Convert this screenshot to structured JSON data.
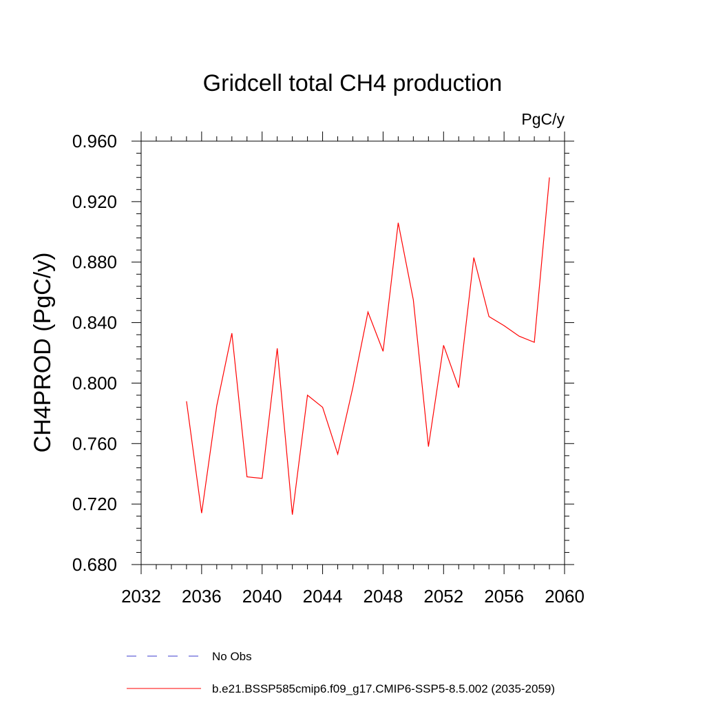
{
  "chart_data": {
    "type": "line",
    "title": "Gridcell total CH4 production",
    "units": "PgC/y",
    "xlabel": "",
    "ylabel": "CH4PROD  (PgC/y)",
    "xlim": [
      2032,
      2060
    ],
    "ylim": [
      0.68,
      0.96
    ],
    "x_ticks": [
      2032,
      2036,
      2040,
      2044,
      2048,
      2052,
      2056,
      2060
    ],
    "x_tick_labels": [
      "2032",
      "2036",
      "2040",
      "2044",
      "2048",
      "2052",
      "2056",
      "2060"
    ],
    "y_ticks": [
      0.68,
      0.72,
      0.76,
      0.8,
      0.84,
      0.88,
      0.92,
      0.96
    ],
    "y_tick_labels": [
      "0.680",
      "0.720",
      "0.760",
      "0.800",
      "0.840",
      "0.880",
      "0.920",
      "0.960"
    ],
    "grid": false,
    "legend_position": "bottom",
    "legend": [
      {
        "label": "No Obs",
        "color": "#3b3bcc",
        "style": "dashed"
      },
      {
        "label": "b.e21.BSSP585cmip6.f09_g17.CMIP6-SSP5-8.5.002 (2035-2059)",
        "color": "#ff0000",
        "style": "solid"
      }
    ],
    "series": [
      {
        "name": "b.e21.BSSP585cmip6.f09_g17.CMIP6-SSP5-8.5.002 (2035-2059)",
        "color": "#ff0000",
        "x": [
          2035,
          2036,
          2037,
          2038,
          2039,
          2040,
          2041,
          2042,
          2043,
          2044,
          2045,
          2046,
          2047,
          2048,
          2049,
          2050,
          2051,
          2052,
          2053,
          2054,
          2055,
          2056,
          2057,
          2058,
          2059
        ],
        "values": [
          0.788,
          0.714,
          0.785,
          0.833,
          0.738,
          0.737,
          0.823,
          0.713,
          0.792,
          0.784,
          0.753,
          0.797,
          0.847,
          0.821,
          0.906,
          0.855,
          0.758,
          0.825,
          0.797,
          0.883,
          0.844,
          0.838,
          0.831,
          0.827,
          0.936
        ]
      }
    ]
  }
}
